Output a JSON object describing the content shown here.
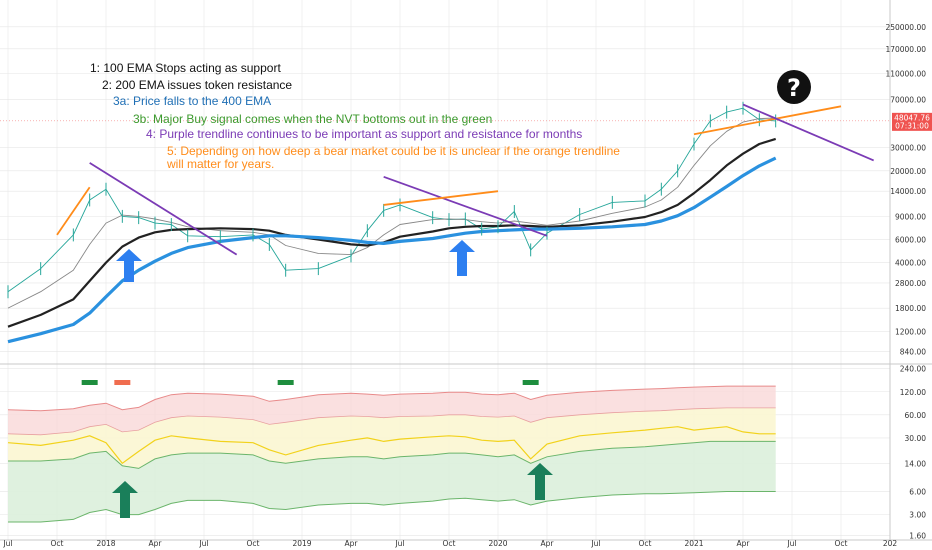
{
  "chart_data": [
    {
      "type": "line",
      "panel": "price",
      "scale": "log",
      "ylim": [
        700,
        400000
      ],
      "x_ticks": [
        "Jul",
        "Oct",
        "2018",
        "Apr",
        "Jul",
        "Oct",
        "2019",
        "Apr",
        "Jul",
        "Oct",
        "2020",
        "Apr",
        "Jul",
        "Oct",
        "2021",
        "Apr",
        "Jul",
        "Oct",
        "202"
      ],
      "y_ticks": [
        "250000.00",
        "170000.00",
        "110000.00",
        "70000.00",
        "48047.76",
        "30000.00",
        "20000.00",
        "14000.00",
        "9000.00",
        "6000.00",
        "4000.00",
        "2800.00",
        "1800.00",
        "1200.00",
        "840.00"
      ],
      "price_label": {
        "value": "48047.76",
        "countdown": "07:31:00"
      },
      "x_dates": [
        "2017-07",
        "2017-09",
        "2017-11",
        "2017-12",
        "2018-01",
        "2018-02",
        "2018-03",
        "2018-04",
        "2018-05",
        "2018-06",
        "2018-08",
        "2018-10",
        "2018-11",
        "2018-12",
        "2019-02",
        "2019-04",
        "2019-05",
        "2019-06",
        "2019-07",
        "2019-09",
        "2019-10",
        "2019-11",
        "2019-12",
        "2020-01",
        "2020-02",
        "2020-03",
        "2020-04",
        "2020-06",
        "2020-08",
        "2020-10",
        "2020-11",
        "2020-12",
        "2021-01",
        "2021-02",
        "2021-03",
        "2021-04",
        "2021-05",
        "2021-06"
      ],
      "series": [
        {
          "name": "",
          "color": "#26a69a",
          "values": [
            2400,
            3600,
            6500,
            12000,
            14500,
            9000,
            8800,
            8000,
            7800,
            6400,
            6300,
            6500,
            5500,
            3500,
            3600,
            4500,
            7000,
            10000,
            11000,
            8800,
            8500,
            8600,
            7200,
            7500,
            9800,
            5000,
            6700,
            9300,
            11500,
            11800,
            14500,
            20000,
            32000,
            48000,
            56000,
            60000,
            49000,
            48000
          ]
        },
        {
          "name": "",
          "color": "#888888",
          "values": [
            1800,
            2400,
            3500,
            5500,
            8000,
            9200,
            9000,
            8600,
            8100,
            7500,
            7000,
            6800,
            6500,
            5400,
            4700,
            4600,
            5200,
            6500,
            7800,
            8500,
            8600,
            8500,
            8200,
            8000,
            8300,
            8000,
            7700,
            8300,
            9500,
            10600,
            12000,
            15000,
            22000,
            31000,
            40000,
            47000,
            50000,
            50500
          ]
        },
        {
          "name": "",
          "color": "#222222",
          "values": [
            1300,
            1600,
            2100,
            2900,
            4000,
            5300,
            6200,
            6800,
            7100,
            7200,
            7300,
            7200,
            7000,
            6500,
            6000,
            5500,
            5400,
            5700,
            6300,
            6900,
            7300,
            7500,
            7600,
            7600,
            7700,
            7600,
            7500,
            7700,
            8200,
            8900,
            9700,
            11000,
            13500,
            17000,
            22000,
            27000,
            32000,
            35000
          ]
        },
        {
          "name": "",
          "color": "#2a91df",
          "values": [
            1000,
            1150,
            1350,
            1650,
            2200,
            2900,
            3500,
            4100,
            4700,
            5200,
            5800,
            6200,
            6400,
            6400,
            6200,
            5900,
            5700,
            5600,
            5800,
            6100,
            6400,
            6700,
            6900,
            7000,
            7100,
            7200,
            7200,
            7300,
            7500,
            7800,
            8300,
            9100,
            10500,
            12600,
            15200,
            18400,
            21800,
            25000
          ]
        }
      ],
      "trendlines": [
        {
          "color": "#7b3bb5",
          "from": [
            "2017-12",
            23000
          ],
          "to": [
            "2018-09",
            4600
          ]
        },
        {
          "color": "#ff8c1a",
          "from": [
            "2017-10",
            6500
          ],
          "to": [
            "2017-12",
            15000
          ]
        },
        {
          "color": "#7b3bb5",
          "from": [
            "2019-06",
            18000
          ],
          "to": [
            "2020-04",
            6400
          ]
        },
        {
          "color": "#ff8c1a",
          "from": [
            "2019-06",
            11000
          ],
          "to": [
            "2020-01",
            14000
          ]
        },
        {
          "color": "#ff8c1a",
          "from": [
            "2021-01",
            38000
          ],
          "to": [
            "2021-10",
            62000
          ]
        },
        {
          "color": "#7b3bb5",
          "from": [
            "2021-04",
            64000
          ],
          "to": [
            "2021-12",
            24000
          ]
        }
      ],
      "annotations": [
        {
          "text": "1: 100 EMA Stops acting as support",
          "color": "#111111"
        },
        {
          "text": "2: 200 EMA issues token resistance",
          "color": "#111111"
        },
        {
          "text": "3a: Price falls to the 400 EMA",
          "color": "#1f6fb5"
        },
        {
          "text": "3b: Major Buy signal comes when the NVT bottoms out in the green",
          "color": "#3c9a2e"
        },
        {
          "text": "4: Purple  trendline continues to be important as support and resistance for months",
          "color": "#7b3bb5"
        },
        {
          "text": "5: Depending on how deep a bear market could be it is unclear if the orange trendline",
          "color": "#ff8c1a"
        },
        {
          "text": "will matter for years.",
          "color": "#ff8c1a"
        }
      ],
      "question_mark": "?"
    },
    {
      "type": "line",
      "panel": "nvt",
      "scale": "log",
      "ylim": [
        1.4,
        260
      ],
      "y_ticks": [
        "240.00",
        "120.00",
        "60.00",
        "30.00",
        "14.00",
        "6.00",
        "3.00",
        "1.60"
      ],
      "x_dates": [
        "2017-07",
        "2017-09",
        "2017-11",
        "2017-12",
        "2018-01",
        "2018-02",
        "2018-03",
        "2018-04",
        "2018-05",
        "2018-06",
        "2018-08",
        "2018-10",
        "2018-11",
        "2018-12",
        "2019-02",
        "2019-04",
        "2019-05",
        "2019-06",
        "2019-07",
        "2019-09",
        "2019-10",
        "2019-11",
        "2019-12",
        "2020-01",
        "2020-02",
        "2020-03",
        "2020-04",
        "2020-06",
        "2020-08",
        "2020-10",
        "2020-11",
        "2020-12",
        "2021-01",
        "2021-02",
        "2021-03",
        "2021-04",
        "2021-05",
        "2021-06"
      ],
      "bands": {
        "upper": [
          70,
          68,
          72,
          80,
          85,
          70,
          75,
          95,
          110,
          115,
          112,
          105,
          90,
          95,
          110,
          115,
          112,
          108,
          112,
          115,
          118,
          118,
          112,
          110,
          115,
          95,
          108,
          118,
          125,
          130,
          132,
          135,
          138,
          140,
          142,
          142,
          142,
          142
        ],
        "middle": [
          34,
          33,
          36,
          42,
          45,
          36,
          38,
          48,
          55,
          58,
          56,
          52,
          45,
          48,
          55,
          58,
          57,
          55,
          57,
          58,
          60,
          60,
          57,
          56,
          58,
          48,
          55,
          60,
          64,
          67,
          68,
          70,
          72,
          73,
          74,
          74,
          74,
          74
        ],
        "lower": [
          15,
          15,
          16,
          19,
          20,
          13,
          12,
          16,
          18,
          19,
          19,
          18,
          15,
          14,
          16,
          17,
          17,
          16,
          17,
          18,
          19,
          19,
          18,
          17,
          18,
          14,
          17,
          20,
          22,
          23,
          24,
          25,
          26,
          27,
          27,
          27,
          27,
          27
        ],
        "bottom": [
          2.4,
          2.4,
          2.6,
          3.2,
          3.5,
          3.0,
          3.0,
          3.5,
          4.2,
          4.6,
          4.6,
          4.2,
          3.6,
          3.5,
          4.0,
          4.2,
          4.2,
          4.0,
          4.2,
          4.5,
          4.8,
          4.9,
          4.7,
          4.5,
          4.7,
          4.0,
          4.5,
          5.0,
          5.4,
          5.6,
          5.6,
          5.7,
          5.8,
          5.9,
          6.0,
          6.0,
          6.0,
          6.0
        ]
      },
      "nvt_line": [
        26,
        24,
        28,
        32,
        26,
        14,
        20,
        28,
        32,
        30,
        27,
        26,
        21,
        18,
        24,
        28,
        30,
        27,
        29,
        31,
        32,
        31,
        28,
        27,
        28,
        16,
        25,
        32,
        35,
        38,
        40,
        42,
        38,
        40,
        42,
        36,
        34,
        34
      ],
      "signals": [
        {
          "date": "2017-12",
          "color": "#1e8e3e"
        },
        {
          "date": "2018-02",
          "color": "#f06d4f"
        },
        {
          "date": "2018-12",
          "color": "#1e8e3e"
        },
        {
          "date": "2020-03",
          "color": "#1e8e3e"
        }
      ]
    }
  ],
  "colors": {
    "arrow_blue": "#2d7ff0",
    "arrow_green": "#1a7f5a",
    "price_tag": "#ef5350",
    "grid": "#e6e6e6"
  },
  "icons": {
    "arrows": "arrow-up-icon",
    "question": "question-circle-icon"
  }
}
